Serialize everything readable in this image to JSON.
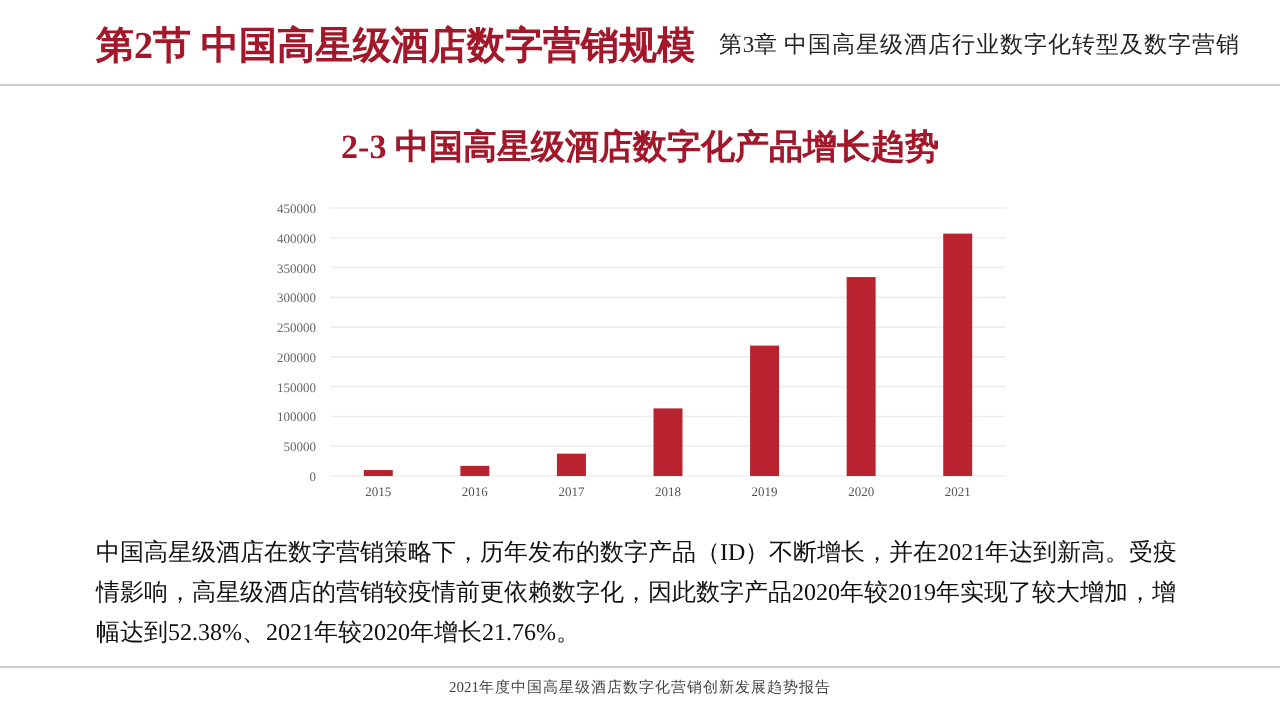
{
  "chart_data": {
    "type": "bar",
    "title": "2-3  中国高星级酒店数字化产品增长趋势",
    "categories": [
      "2015",
      "2016",
      "2017",
      "2018",
      "2019",
      "2020",
      "2021"
    ],
    "values": [
      10000,
      17000,
      37500,
      113500,
      219000,
      334000,
      407000
    ],
    "color": "#b8232f",
    "ylim": [
      0,
      450000
    ],
    "yticks": [
      0,
      50000,
      100000,
      150000,
      200000,
      250000,
      300000,
      350000,
      400000,
      450000
    ],
    "grid": "y",
    "annotations": [
      "第2节 中国高星级酒店数字营销规模",
      "第3章  中国高星级酒店行业数字化转型及数字营销",
      "中国高星级酒店在数字营销策略下，历年发布的数字产品（ID）不断增长，并在2021年达到新高。受疫情影响，高星级酒店的营销较疫情前更依赖数字化，因此数字产品2020年较2019年实现了较大增加，增幅达到52.38%、2021年较2020年增长21.76%。",
      "2021年度中国高星级酒店数字化营销创新发展趋势报告"
    ]
  }
}
